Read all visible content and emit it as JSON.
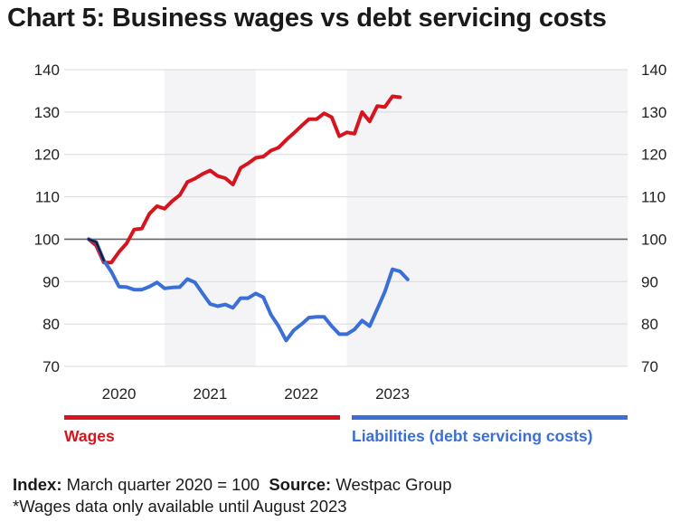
{
  "title": "Chart 5: Business wages vs debt servicing costs",
  "chart_data": {
    "type": "line",
    "title": "Chart 5: Business wages vs debt servicing costs",
    "ylim": [
      70,
      140
    ],
    "yticks": [
      70,
      80,
      90,
      100,
      110,
      120,
      130,
      140
    ],
    "ylabels": [
      "70",
      "80",
      "90",
      "100",
      "110",
      "120",
      "130",
      "140"
    ],
    "xtick_labels": [
      "2020",
      "2021",
      "2022",
      "2023"
    ],
    "reference_line": 100,
    "grid": true,
    "legend": "bottom",
    "series": [
      {
        "name": "Wages",
        "color": "#d7141e",
        "x": [
          "2020-03",
          "2020-04",
          "2020-05",
          "2020-06",
          "2020-07",
          "2020-08",
          "2020-09",
          "2020-10",
          "2020-11",
          "2020-12",
          "2021-01",
          "2021-02",
          "2021-03",
          "2021-04",
          "2021-05",
          "2021-06",
          "2021-07",
          "2021-08",
          "2021-09",
          "2021-10",
          "2021-11",
          "2021-12",
          "2022-01",
          "2022-02",
          "2022-03",
          "2022-04",
          "2022-05",
          "2022-06",
          "2022-07",
          "2022-08",
          "2022-09",
          "2022-10",
          "2022-11",
          "2022-12",
          "2023-01",
          "2023-02",
          "2023-03",
          "2023-04",
          "2023-05",
          "2023-06",
          "2023-07",
          "2023-08"
        ],
        "values": [
          100,
          98.5,
          94.5,
          94.5,
          97,
          99,
          102.3,
          102.5,
          106,
          107.8,
          107.2,
          109,
          110.4,
          113.5,
          114.3,
          115.4,
          116.2,
          114.9,
          114.4,
          112.9,
          116.8,
          117.9,
          119.2,
          119.5,
          120.9,
          121.6,
          123.4,
          125,
          126.7,
          128.3,
          128.3,
          129.7,
          128.8,
          124.3,
          125.2,
          124.9,
          130,
          127.8,
          131.4,
          131.2,
          133.7,
          133.5
        ]
      },
      {
        "name": "Liabilities (debt servicing costs)",
        "color": "#3a6fd8",
        "x": [
          "2020-03",
          "2020-04",
          "2020-05",
          "2020-06",
          "2020-07",
          "2020-08",
          "2020-09",
          "2020-10",
          "2020-11",
          "2020-12",
          "2021-01",
          "2021-02",
          "2021-03",
          "2021-04",
          "2021-05",
          "2021-06",
          "2021-07",
          "2021-08",
          "2021-09",
          "2021-10",
          "2021-11",
          "2021-12",
          "2022-01",
          "2022-02",
          "2022-03",
          "2022-04",
          "2022-05",
          "2022-06",
          "2022-07",
          "2022-08",
          "2022-09",
          "2022-10",
          "2022-11",
          "2022-12",
          "2023-01",
          "2023-02",
          "2023-03",
          "2023-04",
          "2023-05",
          "2023-06",
          "2023-07",
          "2023-08",
          "2023-09"
        ],
        "values": [
          100,
          99.3,
          95,
          92.3,
          88.8,
          88.7,
          88.1,
          88.1,
          88.8,
          89.8,
          88.4,
          88.6,
          88.7,
          90.6,
          89.8,
          87.2,
          84.7,
          84.2,
          84.6,
          83.8,
          86.1,
          86.1,
          87.2,
          86.3,
          82.2,
          79.5,
          76.1,
          78.5,
          79.9,
          81.5,
          81.7,
          81.7,
          79.5,
          77.6,
          77.6,
          78.7,
          80.8,
          79.5,
          83.5,
          87.6,
          92.9,
          92.4,
          90.5
        ]
      }
    ]
  },
  "legend": {
    "wages_label": "Wages",
    "liabilities_label": "Liabilities (debt servicing costs)"
  },
  "footer": {
    "index_label": "Index:",
    "index_text": "March quarter 2020 = 100",
    "source_label": "Source:",
    "source_text": "Westpac Group",
    "note": "*Wages data only available until August 2023"
  }
}
